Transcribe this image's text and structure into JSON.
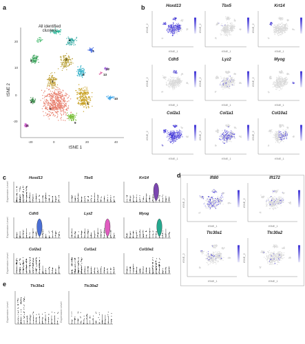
{
  "panels": {
    "a": "a",
    "b": "b",
    "c": "c",
    "d": "d",
    "e": "e"
  },
  "panel_a": {
    "annotation": "All identified clusters",
    "xlabel": "tSNE 1",
    "ylabel": "tSNE 2",
    "x_ticks": [
      "-20",
      "0",
      "20",
      "40"
    ],
    "y_ticks": [
      "20",
      "10",
      "0",
      "-20"
    ],
    "cluster_labels": [
      "0",
      "1",
      "2",
      "3",
      "4",
      "5",
      "6",
      "7",
      "8",
      "9",
      "10",
      "11",
      "12",
      "13"
    ]
  },
  "panel_b": {
    "genes": [
      "Hoxd13",
      "Tbx5",
      "Krt14",
      "Cdh5",
      "Lyz2",
      "Myog",
      "Col2a1",
      "Col1a1",
      "Col10a1"
    ],
    "xlabel": "tSNE_1",
    "ylabel": "tSNE_2"
  },
  "panel_c": {
    "genes": [
      "Hoxd13",
      "Tbx5",
      "Krt14",
      "Cdh5",
      "Lyz2",
      "Myog",
      "Col2a1",
      "Col1a1",
      "Col10a1"
    ],
    "ylabel": "Expression Level"
  },
  "panel_d": {
    "genes": [
      "Ift80",
      "Ift172",
      "Ttc30a1",
      "Ttc30a2"
    ],
    "xlabel": "tSNE_1",
    "ylabel": "tSNE_2"
  },
  "panel_e": {
    "genes": [
      "Ttc30a1",
      "Ttc30a2"
    ],
    "ylabel": "Expression Level"
  },
  "colors": {
    "feature_high": "#3b2fd6",
    "feature_low": "#d9d9d9",
    "violin_krt14": "#7b46b0",
    "violin_cdh5": "#4a6fd6",
    "violin_lyz2": "#e05cc0",
    "violin_myog": "#25a98f"
  }
}
